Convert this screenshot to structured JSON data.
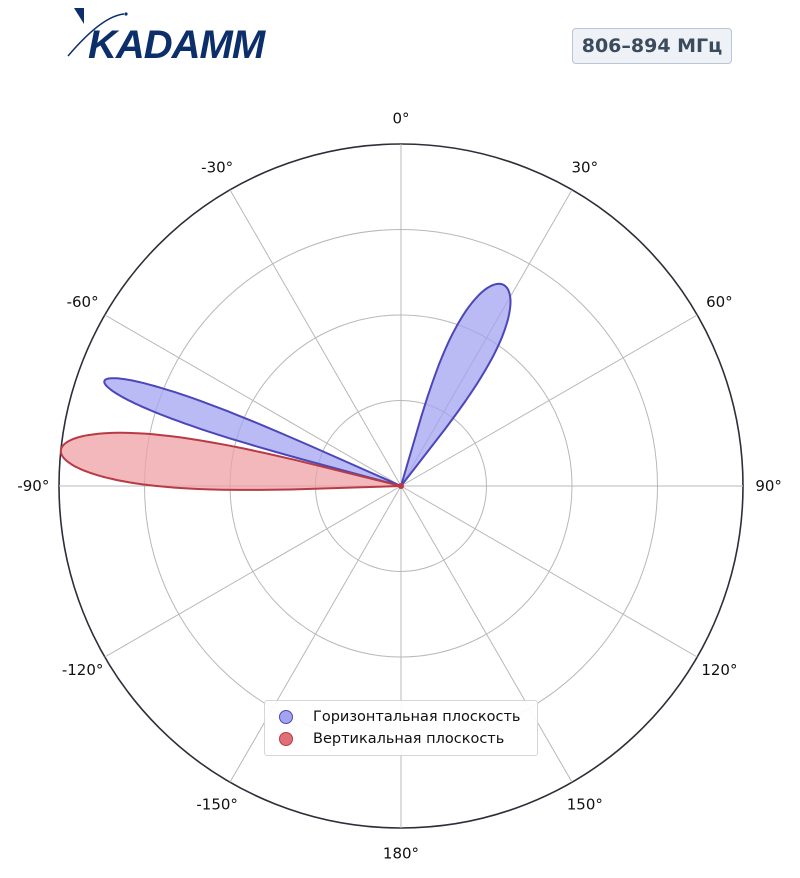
{
  "header": {
    "logo_text": "KADAMM",
    "frequency_label": "806–894 МГц"
  },
  "colors": {
    "horizontal_fill": "#a3a3f0",
    "horizontal_stroke": "#4b47b8",
    "vertical_fill": "#eea0a6",
    "vertical_stroke": "#b83a44",
    "logo": "#0c2f6b"
  },
  "chart_data": {
    "type": "polar-radiation-pattern",
    "angle_ticks": [
      "0°",
      "30°",
      "60°",
      "90°",
      "120°",
      "150°",
      "180°",
      "-150°",
      "-120°",
      "-90°",
      "-60°",
      "-30°"
    ],
    "angle_tick_values": [
      0,
      30,
      60,
      90,
      120,
      150,
      180,
      -150,
      -120,
      -90,
      -60,
      -30
    ],
    "radial_rings": [
      0.25,
      0.5,
      0.75,
      1.0
    ],
    "radial_range": [
      0,
      1
    ],
    "zero_direction": "top",
    "clockwise": true,
    "grid": true,
    "legend_position": "bottom-center",
    "series": [
      {
        "name": "Горизонтальная плоскость",
        "lobes": [
          {
            "center_deg": 27,
            "half_width_deg": 11,
            "peak": 0.66
          },
          {
            "center_deg": -70.5,
            "half_width_deg": 4.5,
            "peak": 0.92
          }
        ]
      },
      {
        "name": "Вертикальная плоскость",
        "lobes": [
          {
            "center_deg": -84,
            "half_width_deg": 8,
            "peak": 1.0
          }
        ]
      }
    ]
  }
}
